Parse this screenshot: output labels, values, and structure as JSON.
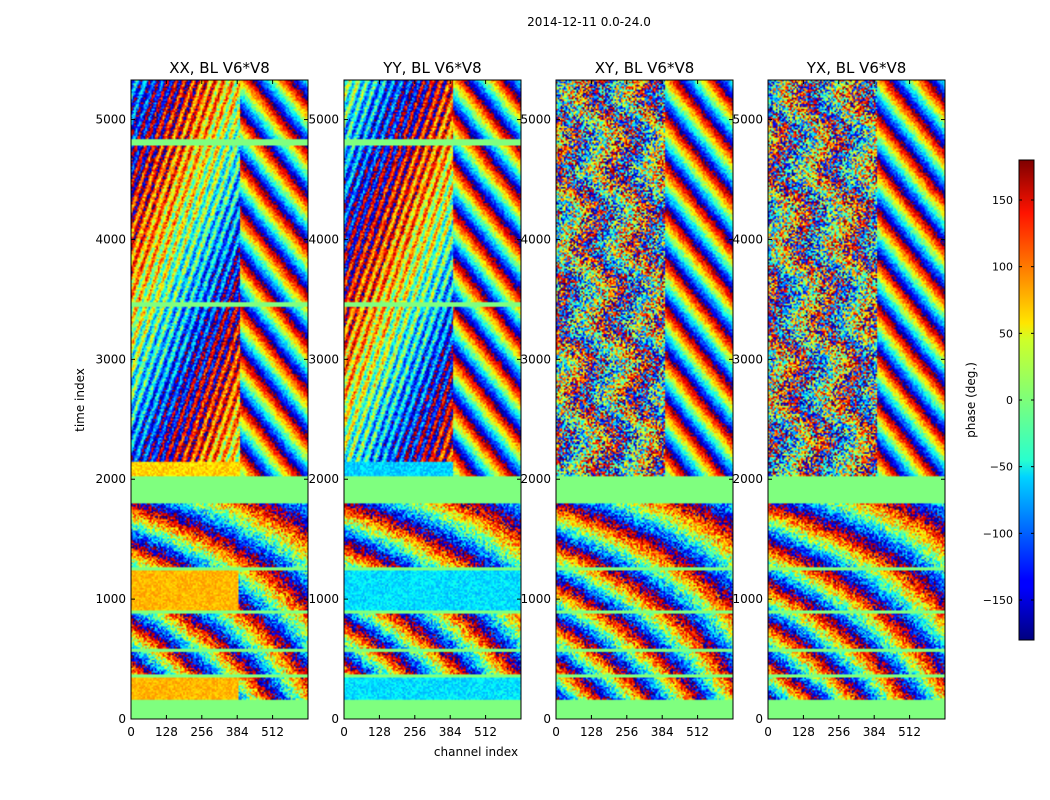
{
  "chart_data": {
    "type": "heatmap",
    "suptitle": "2014-12-11 0.0-24.0",
    "xlabel": "channel index",
    "ylabel": "time index",
    "xlim": [
      0,
      640
    ],
    "ylim": [
      0,
      5330
    ],
    "xticks": [
      0,
      128,
      256,
      384,
      512
    ],
    "yticks": [
      0,
      1000,
      2000,
      3000,
      4000,
      5000
    ],
    "colorbar": {
      "label": "phase (deg.)",
      "vmin": -180,
      "vmax": 180,
      "ticks": [
        -150,
        -100,
        -50,
        0,
        50,
        100,
        150
      ],
      "tick_labels": [
        "−150",
        "−100",
        "−50",
        "0",
        "50",
        "100",
        "150"
      ]
    },
    "flagged_time_ranges": [
      [
        0,
        160
      ],
      [
        1800,
        2020
      ],
      [
        1240,
        1270
      ],
      [
        880,
        900
      ],
      [
        560,
        580
      ],
      [
        350,
        370
      ]
    ],
    "panels": [
      {
        "title": "XX, BL V6*V8",
        "pattern": "xx",
        "extra_flags": [
          [
            4790,
            4840
          ],
          [
            3440,
            3480
          ]
        ]
      },
      {
        "title": "YY, BL V6*V8",
        "pattern": "yy",
        "extra_flags": [
          [
            4790,
            4840
          ],
          [
            3440,
            3480
          ]
        ]
      },
      {
        "title": "XY, BL V6*V8",
        "pattern": "xy",
        "extra_flags": []
      },
      {
        "title": "YX, BL V6*V8",
        "pattern": "yx",
        "extra_flags": []
      }
    ]
  }
}
